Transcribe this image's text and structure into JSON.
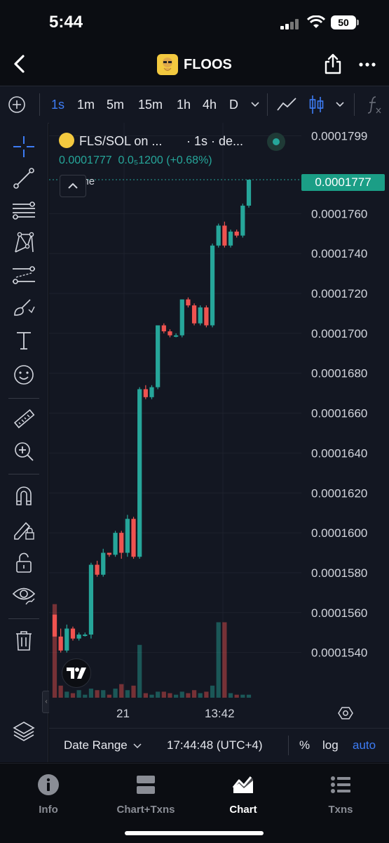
{
  "status_bar": {
    "time": "5:44",
    "battery": "50"
  },
  "nav": {
    "title": "FLOOS"
  },
  "toolbar": {
    "intervals": [
      "1s",
      "1m",
      "5m",
      "15m",
      "1h",
      "4h",
      "D"
    ],
    "active_interval": "1s"
  },
  "legend": {
    "symbol": "FLS/SOL on ...",
    "resolution": "· 1s · de...",
    "price": "0.0001777",
    "change": "0.0₅1200 (+0.68%)"
  },
  "volume_label": "Volume",
  "current_price_tag": "0.0001777",
  "bottom_bar": {
    "date_range": "Date Range",
    "clock": "17:44:48 (UTC+4)",
    "percent": "%",
    "log": "log",
    "auto": "auto"
  },
  "tabs": [
    {
      "label": "Info",
      "icon": "info-icon"
    },
    {
      "label": "Chart+Txns",
      "icon": "split-icon"
    },
    {
      "label": "Chart",
      "icon": "area-chart-icon"
    },
    {
      "label": "Txns",
      "icon": "list-icon"
    }
  ],
  "active_tab": "Chart",
  "colors": {
    "up": "#26a69a",
    "down": "#ef5350",
    "accent": "#3d7cf5",
    "background": "#131722"
  },
  "chart_data": {
    "type": "candlestick",
    "price_axis": {
      "ticks": [
        "0.0001799",
        "0.0001760",
        "0.0001740",
        "0.0001720",
        "0.0001700",
        "0.0001680",
        "0.0001660",
        "0.0001640",
        "0.0001620",
        "0.0001600",
        "0.0001580",
        "0.0001560",
        "0.0001540"
      ],
      "range": [
        0.0001517,
        0.0001802
      ]
    },
    "time_axis": {
      "labels": [
        "21",
        "13:42"
      ]
    },
    "last_price": 0.0001777,
    "candles": [
      {
        "o": 0.0001559,
        "h": 0.0001559,
        "l": 0.0001548,
        "c": 0.0001548,
        "v": 0.62
      },
      {
        "o": 0.0001548,
        "h": 0.0001552,
        "l": 0.000154,
        "c": 0.0001541,
        "v": 0.08
      },
      {
        "o": 0.0001541,
        "h": 0.0001554,
        "l": 0.000154,
        "c": 0.0001552,
        "v": 0.04
      },
      {
        "o": 0.0001552,
        "h": 0.0001553,
        "l": 0.0001546,
        "c": 0.0001547,
        "v": 0.03
      },
      {
        "o": 0.0001547,
        "h": 0.000155,
        "l": 0.0001546,
        "c": 0.0001549,
        "v": 0.05
      },
      {
        "o": 0.0001549,
        "h": 0.000155,
        "l": 0.0001548,
        "c": 0.0001549,
        "v": 0.02
      },
      {
        "o": 0.0001549,
        "h": 0.0001585,
        "l": 0.0001547,
        "c": 0.0001584,
        "v": 0.06
      },
      {
        "o": 0.0001584,
        "h": 0.0001586,
        "l": 0.0001578,
        "c": 0.0001579,
        "v": 0.05
      },
      {
        "o": 0.0001579,
        "h": 0.0001592,
        "l": 0.0001578,
        "c": 0.000159,
        "v": 0.05
      },
      {
        "o": 0.000159,
        "h": 0.000159,
        "l": 0.0001588,
        "c": 0.0001589,
        "v": 0.02
      },
      {
        "o": 0.0001589,
        "h": 0.0001601,
        "l": 0.0001588,
        "c": 0.00016,
        "v": 0.06
      },
      {
        "o": 0.00016,
        "h": 0.0001601,
        "l": 0.0001587,
        "c": 0.000159,
        "v": 0.09
      },
      {
        "o": 0.000159,
        "h": 0.0001609,
        "l": 0.0001588,
        "c": 0.0001607,
        "v": 0.05
      },
      {
        "o": 0.0001607,
        "h": 0.0001608,
        "l": 0.0001587,
        "c": 0.0001588,
        "v": 0.08
      },
      {
        "o": 0.0001588,
        "h": 0.0001673,
        "l": 0.0001587,
        "c": 0.0001672,
        "v": 0.35
      },
      {
        "o": 0.0001672,
        "h": 0.0001674,
        "l": 0.0001667,
        "c": 0.0001668,
        "v": 0.03
      },
      {
        "o": 0.0001668,
        "h": 0.0001674,
        "l": 0.0001667,
        "c": 0.0001673,
        "v": 0.02
      },
      {
        "o": 0.0001673,
        "h": 0.0001704,
        "l": 0.0001672,
        "c": 0.0001704,
        "v": 0.04
      },
      {
        "o": 0.0001704,
        "h": 0.0001705,
        "l": 0.00017,
        "c": 0.0001701,
        "v": 0.04
      },
      {
        "o": 0.0001701,
        "h": 0.0001702,
        "l": 0.0001698,
        "c": 0.0001699,
        "v": 0.03
      },
      {
        "o": 0.0001699,
        "h": 0.00017,
        "l": 0.0001698,
        "c": 0.0001699,
        "v": 0.02
      },
      {
        "o": 0.0001699,
        "h": 0.0001717,
        "l": 0.0001698,
        "c": 0.0001717,
        "v": 0.04
      },
      {
        "o": 0.0001717,
        "h": 0.0001718,
        "l": 0.0001713,
        "c": 0.0001714,
        "v": 0.03
      },
      {
        "o": 0.0001714,
        "h": 0.0001715,
        "l": 0.0001704,
        "c": 0.0001705,
        "v": 0.05
      },
      {
        "o": 0.0001705,
        "h": 0.0001714,
        "l": 0.0001704,
        "c": 0.0001713,
        "v": 0.03
      },
      {
        "o": 0.0001713,
        "h": 0.0001714,
        "l": 0.0001703,
        "c": 0.0001704,
        "v": 0.04
      },
      {
        "o": 0.0001704,
        "h": 0.0001745,
        "l": 0.0001703,
        "c": 0.0001744,
        "v": 0.08
      },
      {
        "o": 0.0001744,
        "h": 0.0001755,
        "l": 0.0001743,
        "c": 0.0001754,
        "v": 0.5
      },
      {
        "o": 0.0001754,
        "h": 0.0001756,
        "l": 0.0001743,
        "c": 0.0001744,
        "v": 0.5
      },
      {
        "o": 0.0001744,
        "h": 0.0001752,
        "l": 0.0001743,
        "c": 0.0001751,
        "v": 0.03
      },
      {
        "o": 0.0001751,
        "h": 0.0001752,
        "l": 0.0001748,
        "c": 0.0001749,
        "v": 0.02
      },
      {
        "o": 0.0001749,
        "h": 0.0001765,
        "l": 0.0001748,
        "c": 0.0001764,
        "v": 0.02
      },
      {
        "o": 0.0001764,
        "h": 0.0001777,
        "l": 0.0001763,
        "c": 0.0001777,
        "v": 0.02
      }
    ]
  }
}
